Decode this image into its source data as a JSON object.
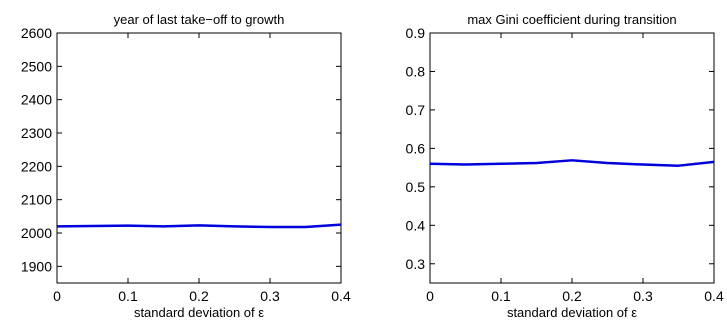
{
  "chart_data": [
    {
      "type": "line",
      "title": "year of last take−off to growth",
      "xlabel": "standard deviation of ε",
      "ylabel": "",
      "xlim": [
        0,
        0.4
      ],
      "ylim": [
        1850,
        2600
      ],
      "x_ticks": [
        0,
        0.1,
        0.2,
        0.3,
        0.4
      ],
      "x_tick_labels": [
        "0",
        "0.1",
        "0.2",
        "0.3",
        "0.4"
      ],
      "y_ticks": [
        1900,
        2000,
        2100,
        2200,
        2300,
        2400,
        2500,
        2600
      ],
      "y_tick_labels": [
        "1900",
        "2000",
        "2100",
        "2200",
        "2300",
        "2400",
        "2500",
        "2600"
      ],
      "grid": false,
      "series": [
        {
          "color": "#0000dd",
          "x": [
            0,
            0.05,
            0.1,
            0.15,
            0.2,
            0.25,
            0.3,
            0.35,
            0.4
          ],
          "values": [
            2020,
            2021,
            2022,
            2020,
            2023,
            2020,
            2018,
            2018,
            2025
          ]
        }
      ]
    },
    {
      "type": "line",
      "title": "max Gini coefficient during transition",
      "xlabel": "standard deviation of ε",
      "ylabel": "",
      "xlim": [
        0,
        0.4
      ],
      "ylim": [
        0.25,
        0.9
      ],
      "x_ticks": [
        0,
        0.1,
        0.2,
        0.3,
        0.4
      ],
      "x_tick_labels": [
        "0",
        "0.1",
        "0.2",
        "0.3",
        "0.4"
      ],
      "y_ticks": [
        0.3,
        0.4,
        0.5,
        0.6,
        0.7,
        0.8,
        0.9
      ],
      "y_tick_labels": [
        "0.3",
        "0.4",
        "0.5",
        "0.6",
        "0.7",
        "0.8",
        "0.9"
      ],
      "grid": false,
      "series": [
        {
          "color": "#0000dd",
          "x": [
            0,
            0.05,
            0.1,
            0.15,
            0.2,
            0.25,
            0.3,
            0.35,
            0.4
          ],
          "values": [
            0.56,
            0.558,
            0.56,
            0.562,
            0.569,
            0.562,
            0.558,
            0.555,
            0.565
          ]
        }
      ]
    }
  ]
}
